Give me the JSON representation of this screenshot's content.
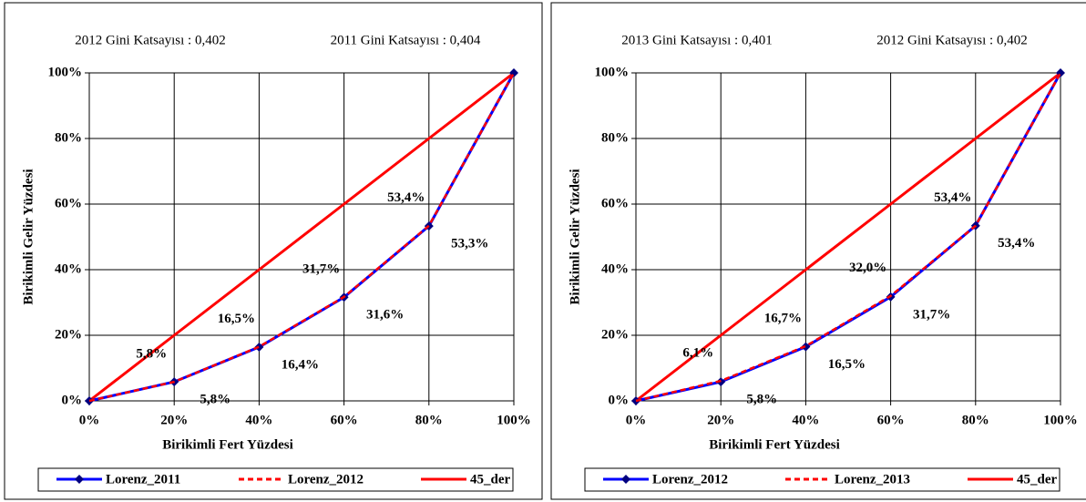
{
  "chart_data": [
    {
      "type": "line",
      "annotations": [
        "2012 Gini Katsayısı : 0,402",
        "2011 Gini Katsayısı : 0,404"
      ],
      "x_label": "Birikimli Fert Yüzdesi",
      "y_label": "Birikimli  Gelir  Yüzdesi",
      "x": [
        0,
        20,
        40,
        60,
        80,
        100
      ],
      "xlim": [
        0,
        100
      ],
      "ylim": [
        0,
        100
      ],
      "xticks": [
        {
          "value": 0,
          "label": "0%"
        },
        {
          "value": 20,
          "label": "20%"
        },
        {
          "value": 40,
          "label": "40%"
        },
        {
          "value": 60,
          "label": "60%"
        },
        {
          "value": 80,
          "label": "80%"
        },
        {
          "value": 100,
          "label": "100%"
        }
      ],
      "yticks": [
        {
          "value": 0,
          "label": "0%"
        },
        {
          "value": 20,
          "label": "20%"
        },
        {
          "value": 40,
          "label": "40%"
        },
        {
          "value": 60,
          "label": "60%"
        },
        {
          "value": 80,
          "label": "80%"
        },
        {
          "value": 100,
          "label": "100%"
        }
      ],
      "grid": true,
      "legend": "bottom",
      "series": [
        {
          "name": "Lorenz_2011",
          "color": "#0000ff",
          "marker": "diamond",
          "line_style": "solid",
          "label_position": "below",
          "values": [
            0,
            5.8,
            16.4,
            31.6,
            53.3,
            100
          ],
          "value_labels": [
            null,
            "5,8%",
            "16,4%",
            "31,6%",
            "53,3%",
            null
          ]
        },
        {
          "name": "Lorenz_2012",
          "color": "#ff0000",
          "line_style": "dashed",
          "label_position": "above",
          "values": [
            0,
            5.8,
            16.5,
            31.7,
            53.4,
            100
          ],
          "value_labels": [
            null,
            "5,8%",
            "16,5%",
            "31,7%",
            "53,4%",
            null
          ]
        },
        {
          "name": "45_der",
          "color": "#ff0000",
          "line_style": "solid",
          "values": [
            0,
            20,
            40,
            60,
            80,
            100
          ]
        }
      ]
    },
    {
      "type": "line",
      "annotations": [
        "2013 Gini Katsayısı : 0,401",
        "2012 Gini Katsayısı : 0,402"
      ],
      "x_label": "Birikimli Fert Yüzdesi",
      "y_label": "Birikimli  Gelir  Yüzdesi",
      "x": [
        0,
        20,
        40,
        60,
        80,
        100
      ],
      "xlim": [
        0,
        100
      ],
      "ylim": [
        0,
        100
      ],
      "xticks": [
        {
          "value": 0,
          "label": "0%"
        },
        {
          "value": 20,
          "label": "20%"
        },
        {
          "value": 40,
          "label": "40%"
        },
        {
          "value": 60,
          "label": "60%"
        },
        {
          "value": 80,
          "label": "80%"
        },
        {
          "value": 100,
          "label": "100%"
        }
      ],
      "yticks": [
        {
          "value": 0,
          "label": "0%"
        },
        {
          "value": 20,
          "label": "20%"
        },
        {
          "value": 40,
          "label": "40%"
        },
        {
          "value": 60,
          "label": "60%"
        },
        {
          "value": 80,
          "label": "80%"
        },
        {
          "value": 100,
          "label": "100%"
        }
      ],
      "grid": true,
      "legend": "bottom",
      "series": [
        {
          "name": "Lorenz_2012",
          "color": "#0000ff",
          "marker": "diamond",
          "line_style": "solid",
          "label_position": "below",
          "values": [
            0,
            5.8,
            16.5,
            31.7,
            53.4,
            100
          ],
          "value_labels": [
            null,
            "5,8%",
            "16,5%",
            "31,7%",
            "53,4%",
            null
          ]
        },
        {
          "name": "Lorenz_2013",
          "color": "#ff0000",
          "line_style": "dashed",
          "label_position": "above",
          "values": [
            0,
            6.1,
            16.7,
            32.0,
            53.4,
            100
          ],
          "value_labels": [
            null,
            "6,1%",
            "16,7%",
            "32,0%",
            "53,4%",
            null
          ]
        },
        {
          "name": "45_der",
          "color": "#ff0000",
          "line_style": "solid",
          "values": [
            0,
            20,
            40,
            60,
            80,
            100
          ]
        }
      ]
    }
  ]
}
